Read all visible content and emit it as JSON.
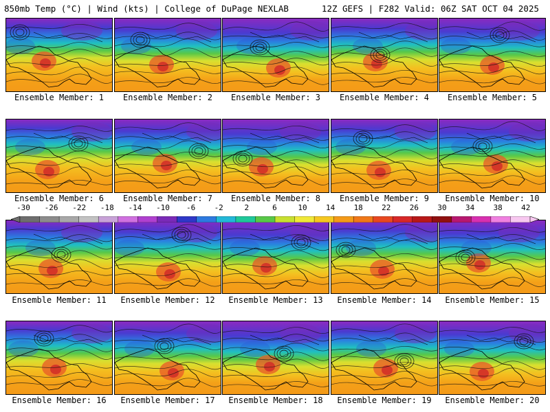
{
  "header": {
    "left": "850mb Temp (°C) | Wind (kts) | College of DuPage NEXLAB",
    "right": "12Z GEFS | F282 Valid: 06Z SAT OCT 04 2025"
  },
  "members": [
    "Ensemble Member: 1",
    "Ensemble Member: 2",
    "Ensemble Member: 3",
    "Ensemble Member: 4",
    "Ensemble Member: 5",
    "Ensemble Member: 6",
    "Ensemble Member: 7",
    "Ensemble Member: 8",
    "Ensemble Member: 9",
    "Ensemble Member: 10",
    "Ensemble Member: 11",
    "Ensemble Member: 12",
    "Ensemble Member: 13",
    "Ensemble Member: 14",
    "Ensemble Member: 15",
    "Ensemble Member: 16",
    "Ensemble Member: 17",
    "Ensemble Member: 18",
    "Ensemble Member: 19",
    "Ensemble Member: 20"
  ],
  "colorbar": {
    "tick_labels": [
      "-30",
      "-26",
      "-22",
      "-18",
      "-14",
      "-10",
      "-6",
      "-2",
      "2",
      "6",
      "10",
      "14",
      "18",
      "22",
      "26",
      "30",
      "34",
      "38",
      "42"
    ],
    "colors": [
      "#6e6e6e",
      "#8c8c8c",
      "#a8a8a8",
      "#c2c2c2",
      "#c8a2d8",
      "#d070e0",
      "#b040d0",
      "#7a2ab8",
      "#2f38c8",
      "#2d7ae0",
      "#22b8d8",
      "#1fc89a",
      "#58c848",
      "#c8e030",
      "#f0e838",
      "#f6c820",
      "#f49a18",
      "#f07818",
      "#e84820",
      "#d82828",
      "#b81818",
      "#901010",
      "#b81870",
      "#d830b0",
      "#f080e0",
      "#f8c8f0"
    ]
  }
}
